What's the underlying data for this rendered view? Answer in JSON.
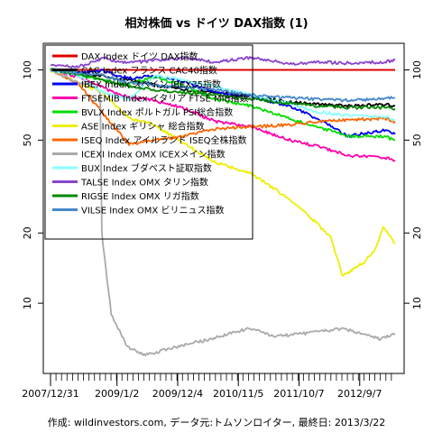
{
  "chart_data": {
    "type": "line",
    "title": "相対株価 vs ドイツ DAX指数 (1)",
    "footer": "作成: wildinvestors.com, データ元:トムソンロイター, 最終日: 2013/3/22",
    "y_scale": "log",
    "ylim": [
      5,
      130
    ],
    "y_ticks": [
      10,
      20,
      50,
      100
    ],
    "x_range": [
      "2007-12-31",
      "2013-03-22"
    ],
    "x_tick_labels": [
      "2007/12/31",
      "2009/1/2",
      "2009/12/4",
      "2010/11/5",
      "2011/10/7",
      "2012/9/7"
    ],
    "x_tick_dates": [
      "2007-12-31",
      "2009-01-02",
      "2009-12-04",
      "2010-11-05",
      "2011-10-07",
      "2012-09-07"
    ],
    "grid": false,
    "legend_position": "top-left",
    "series": [
      {
        "name": "DAX Index ドイツ DAX指数",
        "color": "#dd0000",
        "x": [
          "2007-12-31",
          "2013-03-22"
        ],
        "values": [
          100,
          100
        ]
      },
      {
        "name": "CAC Index フランス CAC40指数",
        "color": "#000000",
        "x": [
          "2007-12-31",
          "2008-06-01",
          "2008-10-15",
          "2009-03-09",
          "2009-08-01",
          "2010-01-15",
          "2010-07-01",
          "2011-01-15",
          "2011-08-15",
          "2012-01-15",
          "2012-07-01",
          "2013-01-15",
          "2013-03-22"
        ],
        "values": [
          100,
          97,
          94,
          90,
          86,
          82,
          80,
          77,
          73,
          71,
          70,
          71,
          70
        ]
      },
      {
        "name": "IBEX Index スペイン IBEX35指数",
        "color": "#0000ee",
        "x": [
          "2007-12-31",
          "2008-06-01",
          "2008-10-15",
          "2009-03-09",
          "2009-08-01",
          "2010-01-15",
          "2010-07-01",
          "2011-01-15",
          "2011-08-15",
          "2012-01-15",
          "2012-07-01",
          "2013-01-15",
          "2013-03-22"
        ],
        "values": [
          100,
          97,
          99,
          92,
          94,
          89,
          80,
          77,
          70,
          62,
          52,
          55,
          53
        ]
      },
      {
        "name": "FTSEMIB Index イタリア FTSE MIB指数",
        "color": "#ff00aa",
        "x": [
          "2007-12-31",
          "2008-06-01",
          "2008-10-15",
          "2009-03-09",
          "2009-08-01",
          "2010-01-15",
          "2010-07-01",
          "2011-01-15",
          "2011-08-15",
          "2012-01-15",
          "2012-07-01",
          "2013-01-15",
          "2013-03-22"
        ],
        "values": [
          100,
          93,
          84,
          76,
          74,
          68,
          60,
          57,
          50,
          47,
          43,
          42,
          41
        ]
      },
      {
        "name": "BVLX Index ポルトガル PSI総合指数",
        "color": "#00dd00",
        "x": [
          "2007-12-31",
          "2008-06-01",
          "2008-10-15",
          "2009-03-09",
          "2009-08-01",
          "2010-01-15",
          "2010-07-01",
          "2011-01-15",
          "2011-08-15",
          "2012-01-15",
          "2012-07-01",
          "2013-01-15",
          "2013-03-22"
        ],
        "values": [
          100,
          96,
          90,
          87,
          93,
          85,
          75,
          70,
          62,
          57,
          52,
          52,
          50
        ]
      },
      {
        "name": "ASE Index ギリシャ 総合指数",
        "color": "#eeee00",
        "x": [
          "2007-12-31",
          "2008-06-01",
          "2008-10-15",
          "2009-03-09",
          "2009-08-01",
          "2010-01-15",
          "2010-07-01",
          "2011-01-15",
          "2011-08-15",
          "2012-01-15",
          "2012-04-01",
          "2012-06-05",
          "2012-08-01",
          "2012-10-01",
          "2012-12-01",
          "2013-01-15",
          "2013-03-22"
        ],
        "values": [
          100,
          88,
          80,
          62,
          58,
          48,
          40,
          36,
          28,
          22,
          19,
          13,
          14,
          15,
          17,
          21,
          18
        ]
      },
      {
        "name": "ISEQ Index アイルランド ISEQ全株指数",
        "color": "#ff6600",
        "x": [
          "2007-12-31",
          "2008-06-01",
          "2008-10-15",
          "2009-03-09",
          "2009-08-01",
          "2010-01-15",
          "2010-07-01",
          "2011-01-15",
          "2011-08-15",
          "2012-01-15",
          "2012-07-01",
          "2013-01-15",
          "2013-03-22"
        ],
        "values": [
          100,
          88,
          65,
          48,
          50,
          52,
          56,
          57,
          58,
          60,
          61,
          62,
          60
        ]
      },
      {
        "name": "ICEXI Index OMX ICEXメイン指数",
        "color": "#aaaaaa",
        "x": [
          "2007-12-31",
          "2008-03-01",
          "2008-06-01",
          "2008-09-01",
          "2008-10-01",
          "2008-10-10",
          "2008-12-01",
          "2009-03-01",
          "2009-06-01",
          "2009-12-01",
          "2010-06-01",
          "2011-01-01",
          "2011-06-01",
          "2012-01-01",
          "2012-06-01",
          "2013-01-01",
          "2013-03-22"
        ],
        "values": [
          100,
          95,
          88,
          85,
          80,
          20,
          9,
          6.5,
          6.0,
          6.5,
          7.0,
          7.8,
          7.2,
          7.5,
          7.8,
          7.0,
          7.4
        ]
      },
      {
        "name": "BUX Index ブダペスト証取指数",
        "color": "#88ffff",
        "x": [
          "2007-12-31",
          "2008-06-01",
          "2008-10-15",
          "2009-03-09",
          "2009-08-01",
          "2010-01-15",
          "2010-07-01",
          "2011-01-15",
          "2011-08-15",
          "2012-01-15",
          "2012-07-01",
          "2013-01-15",
          "2013-03-22"
        ],
        "values": [
          100,
          95,
          80,
          75,
          95,
          90,
          85,
          78,
          72,
          66,
          64,
          63,
          61
        ]
      },
      {
        "name": "TALSE Index OMX タリン指数",
        "color": "#8844cc",
        "x": [
          "2007-12-31",
          "2008-06-01",
          "2008-10-15",
          "2009-03-09",
          "2009-08-01",
          "2010-01-15",
          "2010-07-01",
          "2011-01-15",
          "2011-08-15",
          "2012-01-15",
          "2012-07-01",
          "2013-01-15",
          "2013-03-22"
        ],
        "values": [
          105,
          103,
          112,
          107,
          110,
          112,
          108,
          113,
          106,
          108,
          107,
          108,
          110
        ]
      },
      {
        "name": "RIGSE Index OMX リガ指数",
        "color": "#008800",
        "x": [
          "2007-12-31",
          "2008-06-01",
          "2008-10-15",
          "2009-03-09",
          "2009-08-01",
          "2010-01-15",
          "2010-07-01",
          "2011-01-15",
          "2011-08-15",
          "2012-01-15",
          "2012-07-01",
          "2013-01-15",
          "2013-03-22"
        ],
        "values": [
          100,
          96,
          90,
          85,
          82,
          80,
          78,
          75,
          72,
          70,
          69,
          69,
          68
        ]
      },
      {
        "name": "VILSE Index OMX ビリニュス指数",
        "color": "#4488cc",
        "x": [
          "2007-12-31",
          "2008-06-01",
          "2008-10-15",
          "2009-03-09",
          "2009-08-01",
          "2010-01-15",
          "2010-07-01",
          "2011-01-15",
          "2011-08-15",
          "2012-01-15",
          "2012-07-01",
          "2013-01-15",
          "2013-03-22"
        ],
        "values": [
          100,
          97,
          95,
          88,
          86,
          84,
          82,
          78,
          76,
          75,
          74,
          75,
          76
        ]
      }
    ]
  }
}
